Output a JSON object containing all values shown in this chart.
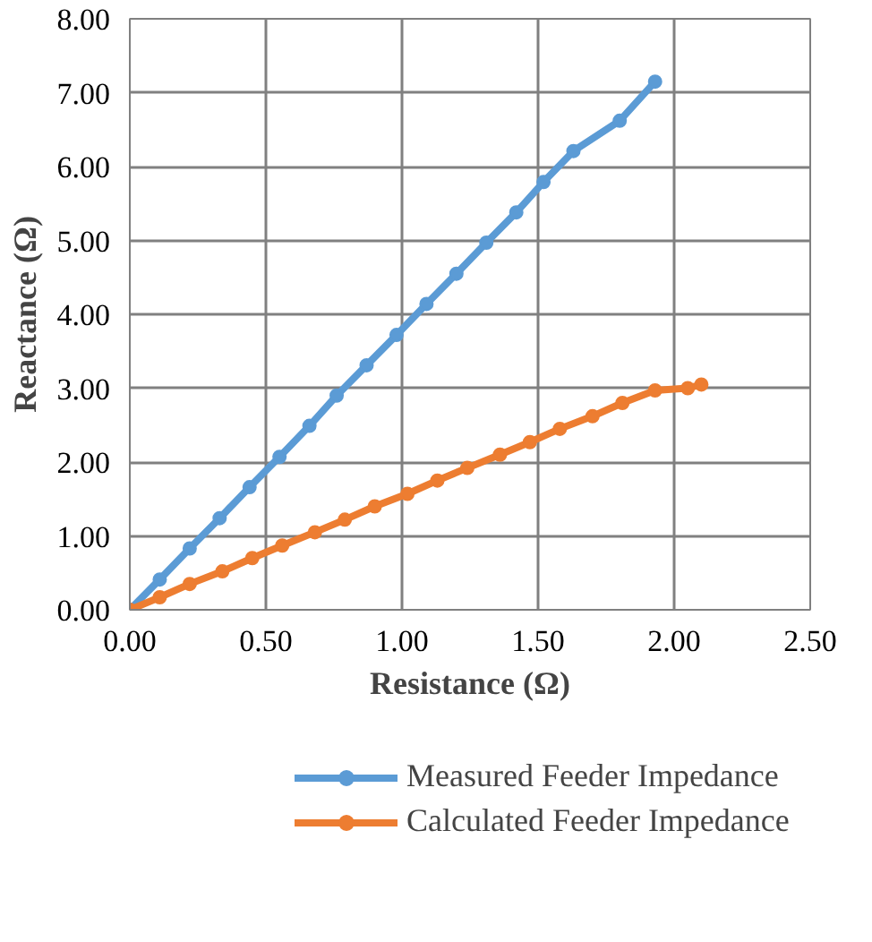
{
  "chart_data": {
    "type": "line",
    "xlabel": "Resistance (Ω)",
    "ylabel": "Reactance (Ω)",
    "xlim": [
      0,
      2.5
    ],
    "ylim": [
      0,
      8
    ],
    "xticks": [
      {
        "value": 0,
        "label": "0.00"
      },
      {
        "value": 0.5,
        "label": "0.50"
      },
      {
        "value": 1,
        "label": "1.00"
      },
      {
        "value": 1.5,
        "label": "1.50"
      },
      {
        "value": 2,
        "label": "2.00"
      },
      {
        "value": 2.5,
        "label": "2.50"
      }
    ],
    "yticks": [
      {
        "value": 0,
        "label": "0.00"
      },
      {
        "value": 1,
        "label": "1.00"
      },
      {
        "value": 2,
        "label": "2.00"
      },
      {
        "value": 3,
        "label": "3.00"
      },
      {
        "value": 4,
        "label": "4.00"
      },
      {
        "value": 5,
        "label": "5.00"
      },
      {
        "value": 6,
        "label": "6.00"
      },
      {
        "value": 7,
        "label": "7.00"
      },
      {
        "value": 8,
        "label": "8.00"
      }
    ],
    "grid": true,
    "legend": "bottom",
    "marker": "circle",
    "line_style": "solid",
    "series": [
      {
        "name": "Measured Feeder Impedance",
        "color": "#5b9bd5",
        "x": [
          0,
          0.11,
          0.22,
          0.33,
          0.44,
          0.55,
          0.66,
          0.76,
          0.87,
          0.98,
          1.09,
          1.2,
          1.31,
          1.42,
          1.52,
          1.63,
          1.8,
          1.93
        ],
        "values": [
          0,
          0.41,
          0.83,
          1.24,
          1.66,
          2.07,
          2.49,
          2.9,
          3.31,
          3.72,
          4.14,
          4.55,
          4.97,
          5.38,
          5.79,
          6.21,
          6.62,
          7.15
        ]
      },
      {
        "name": "Calculated Feeder Impedance",
        "color": "#ed7d31",
        "x": [
          0,
          0.11,
          0.22,
          0.34,
          0.45,
          0.56,
          0.68,
          0.79,
          0.9,
          1.02,
          1.13,
          1.24,
          1.36,
          1.47,
          1.58,
          1.7,
          1.81,
          1.93,
          2.05,
          2.1
        ],
        "values": [
          0,
          0.17,
          0.35,
          0.52,
          0.7,
          0.87,
          1.05,
          1.22,
          1.4,
          1.57,
          1.75,
          1.92,
          2.1,
          2.27,
          2.45,
          2.62,
          2.8,
          2.97,
          3.0,
          3.05
        ]
      }
    ]
  }
}
